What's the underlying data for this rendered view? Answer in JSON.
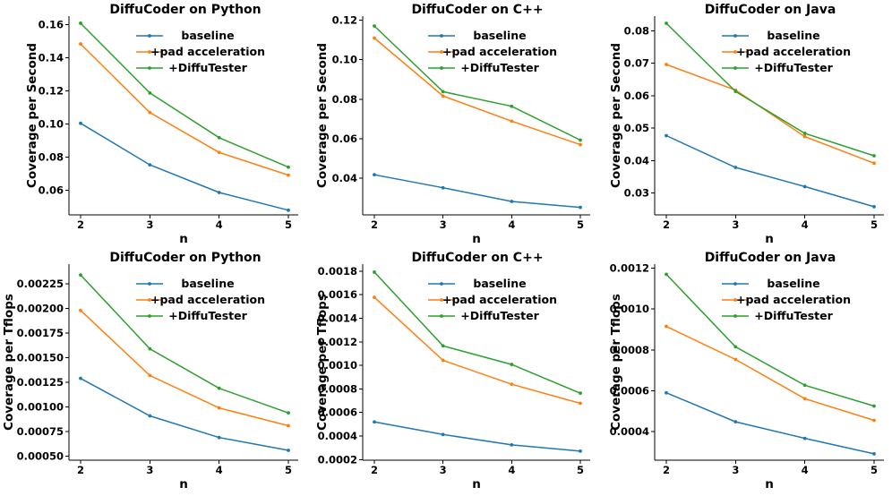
{
  "colors": {
    "baseline": "#1f77b4",
    "+pad acceleration": "#ff7f0e",
    "+DiffuTester": "#2ca02c"
  },
  "chart_data": [
    {
      "type": "line",
      "title": "DiffuCoder on Python",
      "xlabel": "n",
      "ylabel": "Coverage per Second",
      "x": [
        2,
        3,
        4,
        5
      ],
      "ylim": [
        0.045,
        0.165
      ],
      "yticks": [
        "0.06",
        "0.08",
        "0.10",
        "0.12",
        "0.14",
        "0.16"
      ],
      "series": [
        {
          "name": "baseline",
          "values": [
            0.1003,
            0.0752,
            0.0585,
            0.0478
          ]
        },
        {
          "name": "+pad acceleration",
          "values": [
            0.1482,
            0.1068,
            0.0827,
            0.069
          ]
        },
        {
          "name": "+DiffuTester",
          "values": [
            0.1607,
            0.1186,
            0.0916,
            0.0738
          ]
        }
      ]
    },
    {
      "type": "line",
      "title": "DiffuCoder on C++",
      "xlabel": "n",
      "ylabel": "Coverage per Second",
      "x": [
        2,
        3,
        4,
        5
      ],
      "ylim": [
        0.0215,
        0.122
      ],
      "yticks": [
        "0.04",
        "0.06",
        "0.08",
        "0.10",
        "0.12"
      ],
      "series": [
        {
          "name": "baseline",
          "values": [
            0.0418,
            0.0352,
            0.0283,
            0.0253
          ]
        },
        {
          "name": "+pad acceleration",
          "values": [
            0.1109,
            0.0816,
            0.0689,
            0.057
          ]
        },
        {
          "name": "+DiffuTester",
          "values": [
            0.117,
            0.0838,
            0.0764,
            0.0593
          ]
        }
      ]
    },
    {
      "type": "line",
      "title": "DiffuCoder on Java",
      "xlabel": "n",
      "ylabel": "Coverage per Second",
      "x": [
        2,
        3,
        4,
        5
      ],
      "ylim": [
        0.0233,
        0.0845
      ],
      "yticks": [
        "0.03",
        "0.04",
        "0.05",
        "0.06",
        "0.07",
        "0.08"
      ],
      "series": [
        {
          "name": "baseline",
          "values": [
            0.0477,
            0.0379,
            0.032,
            0.0258
          ]
        },
        {
          "name": "+pad acceleration",
          "values": [
            0.0696,
            0.0617,
            0.0474,
            0.0392
          ]
        },
        {
          "name": "+DiffuTester",
          "values": [
            0.0823,
            0.0613,
            0.0484,
            0.0415
          ]
        }
      ]
    },
    {
      "type": "line",
      "title": "DiffuCoder on Python",
      "xlabel": "n",
      "ylabel": "Coverage per Tflops",
      "x": [
        2,
        3,
        4,
        5
      ],
      "ylim": [
        0.00046,
        0.00245
      ],
      "yticks": [
        "0.00050",
        "0.00075",
        "0.00100",
        "0.00125",
        "0.00150",
        "0.00175",
        "0.00200",
        "0.00225"
      ],
      "series": [
        {
          "name": "baseline",
          "values": [
            0.00129,
            0.00091,
            0.00069,
            0.00056
          ]
        },
        {
          "name": "+pad acceleration",
          "values": [
            0.00198,
            0.00132,
            0.00099,
            0.00081
          ]
        },
        {
          "name": "+DiffuTester",
          "values": [
            0.00234,
            0.00159,
            0.00119,
            0.00094
          ]
        }
      ]
    },
    {
      "type": "line",
      "title": "DiffuCoder on C++",
      "xlabel": "n",
      "ylabel": "Coverage per Tflops",
      "x": [
        2,
        3,
        4,
        5
      ],
      "ylim": [
        0.000195,
        0.00186
      ],
      "yticks": [
        "0.0002",
        "0.0004",
        "0.0006",
        "0.0008",
        "0.0010",
        "0.0012",
        "0.0014",
        "0.0016",
        "0.0018"
      ],
      "series": [
        {
          "name": "baseline",
          "values": [
            0.00052,
            0.000413,
            0.000325,
            0.000272
          ]
        },
        {
          "name": "+pad acceleration",
          "values": [
            0.001578,
            0.001043,
            0.00084,
            0.000678
          ]
        },
        {
          "name": "+DiffuTester",
          "values": [
            0.001792,
            0.001166,
            0.001008,
            0.000764
          ]
        }
      ]
    },
    {
      "type": "line",
      "title": "DiffuCoder on Java",
      "xlabel": "n",
      "ylabel": "Coverage per Tflops",
      "x": [
        2,
        3,
        4,
        5
      ],
      "ylim": [
        0.00026,
        0.00122
      ],
      "yticks": [
        "0.0004",
        "0.0006",
        "0.0008",
        "0.0010",
        "0.0012"
      ],
      "series": [
        {
          "name": "baseline",
          "values": [
            0.00059,
            0.000448,
            0.000367,
            0.000291
          ]
        },
        {
          "name": "+pad acceleration",
          "values": [
            0.000915,
            0.000753,
            0.000561,
            0.000455
          ]
        },
        {
          "name": "+DiffuTester",
          "values": [
            0.00117,
            0.000815,
            0.000627,
            0.000525
          ]
        }
      ]
    }
  ]
}
